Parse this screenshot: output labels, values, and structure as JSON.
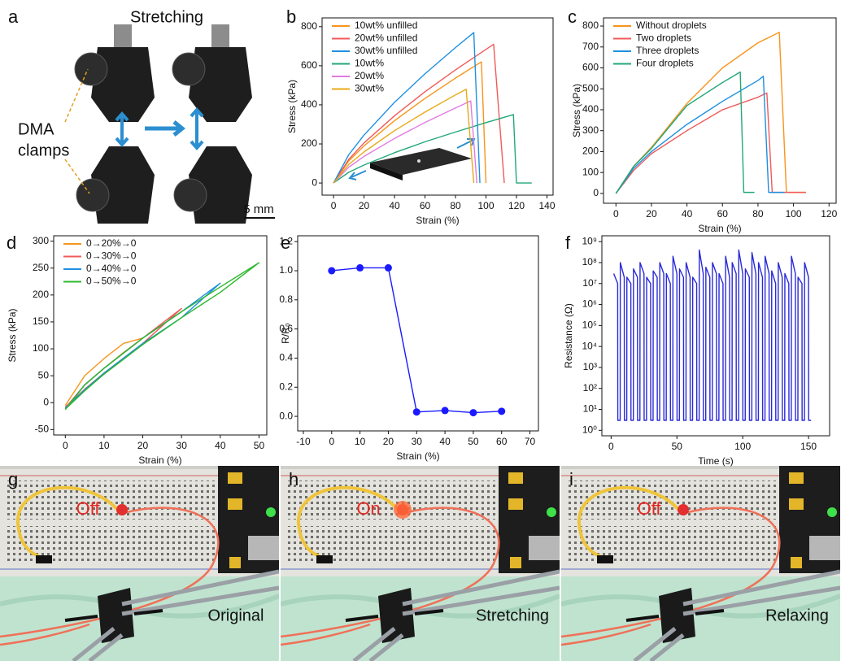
{
  "chart_data": [
    {
      "panel_label": "b",
      "type": "line",
      "x_label": "Strain (%)",
      "y_label": "Stress (kPa)",
      "xlim": [
        -7.5,
        144
      ],
      "ylim": [
        -62,
        845
      ],
      "xticks": [
        0,
        20,
        40,
        60,
        80,
        100,
        120,
        140
      ],
      "yticks": [
        0,
        200,
        400,
        600,
        800
      ],
      "legend": "upper left",
      "series": [
        {
          "name": "10wt% unfilled",
          "color": "#f7941d",
          "x": [
            0,
            10,
            20,
            40,
            60,
            80,
            97,
            100
          ],
          "values": [
            0,
            113,
            190,
            319,
            433,
            537,
            620,
            0
          ]
        },
        {
          "name": "20wt% unfilled",
          "color": "#f05a5a",
          "x": [
            0,
            10,
            20,
            40,
            60,
            80,
            105,
            112
          ],
          "values": [
            0,
            121,
            205,
            344,
            467,
            579,
            710,
            0
          ]
        },
        {
          "name": "30wt% unfilled",
          "color": "#1f8fe0",
          "x": [
            0,
            10,
            20,
            40,
            60,
            80,
            92,
            96
          ],
          "values": [
            0,
            145,
            245,
            413,
            559,
            693,
            770,
            0
          ]
        },
        {
          "name": "10wt%",
          "color": "#22a878",
          "x": [
            0,
            10,
            20,
            40,
            60,
            80,
            100,
            118,
            120,
            130
          ],
          "values": [
            0,
            55,
            92,
            155,
            211,
            261,
            309,
            350,
            0,
            0
          ]
        },
        {
          "name": "20wt%",
          "color": "#e27be2",
          "x": [
            0,
            10,
            20,
            40,
            60,
            80,
            90,
            94
          ],
          "values": [
            0,
            81,
            136,
            228,
            310,
            384,
            420,
            0
          ]
        },
        {
          "name": "30wt%",
          "color": "#e8a917",
          "x": [
            0,
            10,
            20,
            40,
            60,
            80,
            87,
            92
          ],
          "values": [
            0,
            95,
            159,
            268,
            363,
            451,
            480,
            0
          ]
        }
      ]
    },
    {
      "panel_label": "c",
      "type": "line",
      "x_label": "Strain (%)",
      "y_label": "Stress (kPa)",
      "xlim": [
        -7,
        124
      ],
      "ylim": [
        -47,
        839
      ],
      "xticks": [
        0,
        20,
        40,
        60,
        80,
        100,
        120
      ],
      "yticks": [
        0,
        100,
        200,
        300,
        400,
        500,
        600,
        700,
        800
      ],
      "legend": "upper left",
      "series": [
        {
          "name": "Without droplets",
          "color": "#f7941d",
          "x": [
            0,
            10,
            20,
            40,
            60,
            80,
            92,
            96,
            107
          ],
          "values": [
            0,
            130,
            220,
            430,
            600,
            720,
            770,
            5,
            5
          ]
        },
        {
          "name": "Two droplets",
          "color": "#f05a5a",
          "x": [
            0,
            10,
            20,
            40,
            60,
            80,
            85,
            88,
            107
          ],
          "values": [
            0,
            110,
            190,
            300,
            400,
            460,
            480,
            5,
            5
          ]
        },
        {
          "name": "Three droplets",
          "color": "#1f8fe0",
          "x": [
            0,
            10,
            20,
            40,
            60,
            80,
            83,
            86,
            95
          ],
          "values": [
            0,
            120,
            200,
            330,
            440,
            540,
            560,
            5,
            5
          ]
        },
        {
          "name": "Four droplets",
          "color": "#22a878",
          "x": [
            0,
            10,
            20,
            40,
            60,
            70,
            72,
            78
          ],
          "values": [
            0,
            130,
            215,
            420,
            530,
            580,
            5,
            5
          ]
        }
      ]
    },
    {
      "panel_label": "d",
      "type": "line",
      "x_label": "Strain (%)",
      "y_label": "Stress (kPa)",
      "xlim": [
        -3,
        52
      ],
      "ylim": [
        -60,
        310
      ],
      "xticks": [
        0,
        10,
        20,
        30,
        40,
        50
      ],
      "yticks": [
        -50,
        0,
        50,
        100,
        150,
        200,
        250,
        300
      ],
      "legend": "upper left",
      "series": [
        {
          "name": "0→20%→0",
          "color": "#f7941d",
          "x": [
            0,
            5,
            10,
            15,
            20,
            15,
            10,
            5,
            0
          ],
          "values": [
            -10,
            33,
            64,
            93,
            120,
            110,
            82,
            50,
            -5
          ]
        },
        {
          "name": "0→30%→0",
          "color": "#f05a5a",
          "x": [
            0,
            5,
            10,
            20,
            30,
            20,
            10,
            5,
            0
          ],
          "values": [
            -10,
            33,
            64,
            120,
            175,
            110,
            55,
            25,
            -8
          ]
        },
        {
          "name": "0→40%→0",
          "color": "#1f8fe0",
          "x": [
            0,
            5,
            10,
            20,
            30,
            40,
            30,
            20,
            10,
            5,
            0
          ],
          "values": [
            -12,
            33,
            64,
            120,
            169,
            222,
            158,
            110,
            55,
            24,
            -10
          ]
        },
        {
          "name": "0→50%→0",
          "color": "#2db82d",
          "x": [
            0,
            5,
            10,
            20,
            30,
            40,
            50,
            40,
            30,
            20,
            10,
            5,
            0
          ],
          "values": [
            -13,
            33,
            64,
            120,
            169,
            215,
            260,
            205,
            158,
            108,
            53,
            22,
            -12
          ]
        }
      ]
    },
    {
      "panel_label": "e",
      "type": "line",
      "x_label": "Strain (%)",
      "y_label": "R/R₀",
      "xlim": [
        -12,
        73
      ],
      "ylim": [
        -0.1,
        1.24
      ],
      "xticks": [
        -10,
        0,
        10,
        20,
        30,
        40,
        50,
        60,
        70
      ],
      "yticks": [
        {
          "value": 0,
          "label": "0.0"
        },
        0.2,
        0.4,
        0.6,
        0.8,
        {
          "value": 1,
          "label": "1.0"
        },
        1.2
      ],
      "x": [
        0,
        10,
        20,
        30,
        40,
        50,
        60
      ],
      "values": [
        1.0,
        1.02,
        1.02,
        0.03,
        0.04,
        0.025,
        0.035
      ],
      "color": "#1a1aff",
      "markers": true
    },
    {
      "panel_label": "f",
      "type": "line",
      "x_label": "Time (s)",
      "y_label": "Resistance (Ω)",
      "log_y": true,
      "xlim": [
        -7,
        166
      ],
      "ylim": [
        0.55,
        1900000000.0
      ],
      "xticks": [
        0,
        50,
        100,
        150
      ],
      "yticks": [
        {
          "value": 1,
          "label": "10⁰"
        },
        {
          "value": 10,
          "label": "10¹"
        },
        {
          "value": 100,
          "label": "10²"
        },
        {
          "value": 1000,
          "label": "10³"
        },
        {
          "value": 10000.0,
          "label": "10⁴"
        },
        {
          "value": 100000.0,
          "label": "10⁵"
        },
        {
          "value": 1000000.0,
          "label": "10⁶"
        },
        {
          "value": 10000000.0,
          "label": "10⁷"
        },
        {
          "value": 100000000.0,
          "label": "10⁸"
        },
        {
          "value": 1000000000.0,
          "label": "10⁹"
        }
      ],
      "color": "#2a2ad8",
      "x": [
        2,
        5,
        5.1,
        6.9,
        7,
        10,
        10.1,
        11.9,
        12,
        15,
        15.1,
        16.9,
        17,
        20,
        20.1,
        21.9,
        22,
        25,
        25.1,
        26.9,
        27,
        30,
        30.1,
        31.9,
        32,
        35,
        35.1,
        36.9,
        37,
        40,
        40.1,
        41.9,
        42,
        45,
        45.1,
        46.9,
        47,
        50,
        50.1,
        51.9,
        52,
        55,
        55.1,
        56.9,
        57,
        60,
        60.1,
        61.9,
        62,
        65,
        65.1,
        66.9,
        67,
        70,
        70.1,
        71.9,
        72,
        75,
        75.1,
        76.9,
        77,
        80,
        80.1,
        81.9,
        82,
        85,
        85.1,
        86.9,
        87,
        90,
        90.1,
        91.9,
        92,
        95,
        95.1,
        96.9,
        97,
        100,
        100.1,
        101.9,
        102,
        105,
        105.1,
        106.9,
        107,
        110,
        110.1,
        111.9,
        112,
        115,
        115.1,
        116.9,
        117,
        120,
        120.1,
        121.9,
        122,
        125,
        125.1,
        126.9,
        127,
        130,
        130.1,
        131.9,
        132,
        135,
        135.1,
        136.9,
        137,
        140,
        140.1,
        141.9,
        142,
        145,
        145.1,
        146.9,
        147,
        150,
        150.1,
        151.9
      ],
      "values": [
        30000000.0,
        10000000.0,
        3,
        3,
        100000000.0,
        20000000.0,
        3,
        3,
        20000000.0,
        10000000.0,
        3,
        3,
        50000000.0,
        20000000.0,
        3,
        3,
        100000000.0,
        30000000.0,
        3,
        3,
        20000000.0,
        10000000.0,
        3,
        3,
        40000000.0,
        20000000.0,
        3,
        3,
        100000000.0,
        30000000.0,
        3,
        3,
        30000000.0,
        10000000.0,
        3,
        3,
        200000000.0,
        30000000.0,
        3,
        3,
        50000000.0,
        20000000.0,
        3,
        3,
        100000000.0,
        20000000.0,
        3,
        3,
        20000000.0,
        10000000.0,
        3,
        3,
        400000000.0,
        30000000.0,
        3,
        3,
        60000000.0,
        20000000.0,
        3,
        3,
        100000000.0,
        30000000.0,
        3,
        3,
        30000000.0,
        10000000.0,
        3,
        3,
        200000000.0,
        20000000.0,
        3,
        3,
        100000000.0,
        30000000.0,
        3,
        3,
        400000000.0,
        30000000.0,
        3,
        3,
        50000000.0,
        20000000.0,
        3,
        3,
        300000000.0,
        30000000.0,
        3,
        3,
        100000000.0,
        20000000.0,
        3,
        3,
        200000000.0,
        30000000.0,
        3,
        3,
        40000000.0,
        10000000.0,
        3,
        3,
        100000000.0,
        20000000.0,
        3,
        3,
        30000000.0,
        10000000.0,
        3,
        3,
        200000000.0,
        30000000.0,
        3,
        3,
        20000000.0,
        10000000.0,
        3,
        3,
        100000000.0,
        20000000.0,
        3,
        3
      ]
    }
  ],
  "photos": [
    {
      "panel_label": "a",
      "title": "Stretching",
      "annotation": [
        "DMA",
        "clamps"
      ],
      "scale_bar": "5 mm"
    },
    {
      "panel_label": "g",
      "state": "Off",
      "caption": "Original"
    },
    {
      "panel_label": "h",
      "state": "On",
      "caption": "Stretching"
    },
    {
      "panel_label": "i",
      "state": "Off",
      "caption": "Relaxing"
    }
  ]
}
